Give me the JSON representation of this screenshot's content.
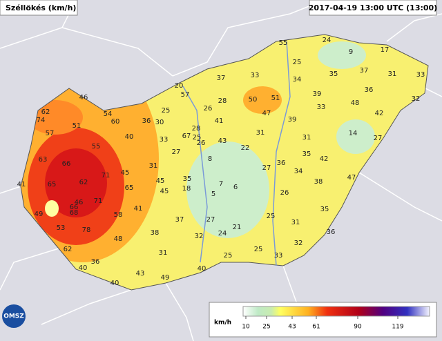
{
  "header": {
    "title": "Széllökés (km/h)",
    "timestamp": "2017-04-19 13:00 UTC (13:00)"
  },
  "stations": [
    55,
    24,
    9,
    17,
    25,
    33,
    35,
    37,
    31,
    33,
    37,
    34,
    20,
    36,
    32,
    39,
    50,
    51,
    48,
    46,
    57,
    28,
    26,
    33,
    62,
    54,
    25,
    47,
    42,
    74,
    60,
    36,
    30,
    41,
    39,
    51,
    57,
    67,
    28,
    25,
    26,
    31,
    14,
    43,
    27,
    40,
    33,
    55,
    22,
    31,
    27,
    35,
    42,
    63,
    66,
    8,
    36,
    27,
    31,
    34,
    45,
    71,
    35,
    45,
    41,
    65,
    62,
    65,
    7,
    6,
    47,
    38,
    18,
    45,
    5,
    26,
    46,
    71,
    66,
    68,
    41,
    35,
    49,
    58,
    37,
    27,
    25,
    31,
    53,
    78,
    21,
    38,
    24,
    36,
    48,
    32,
    32,
    62,
    31,
    25,
    25,
    33,
    36,
    40,
    43,
    40,
    49,
    40
  ],
  "legend": {
    "unit": "km/h",
    "ticks": [
      10,
      25,
      43,
      61,
      90,
      119
    ]
  },
  "logo": "OMSZ"
}
